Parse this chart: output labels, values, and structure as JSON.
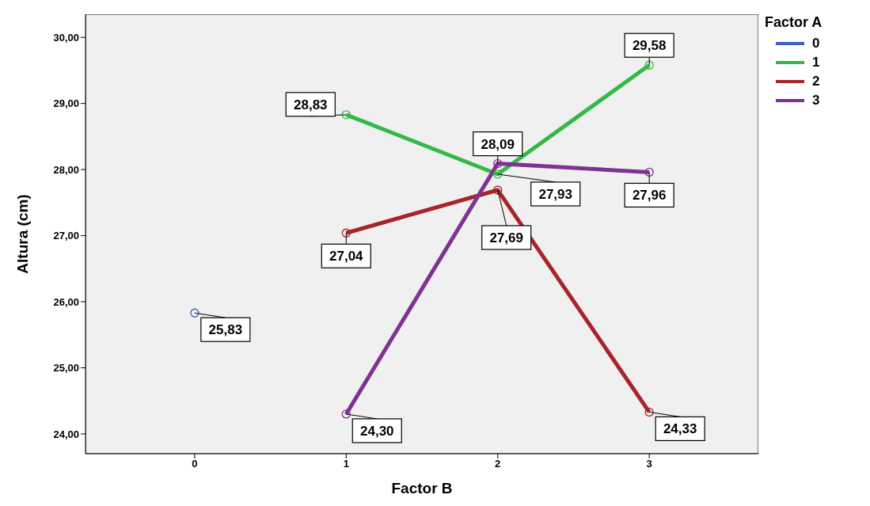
{
  "chart_data": {
    "type": "line",
    "xlabel": "Factor B",
    "ylabel": "Altura (cm)",
    "legend_title": "Factor A",
    "categories": [
      "0",
      "1",
      "2",
      "3"
    ],
    "ylim": [
      23.7,
      30.35
    ],
    "yticks": [
      {
        "value": 24,
        "label": "24,00"
      },
      {
        "value": 25,
        "label": "25,00"
      },
      {
        "value": 26,
        "label": "26,00"
      },
      {
        "value": 27,
        "label": "27,00"
      },
      {
        "value": 28,
        "label": "28,00"
      },
      {
        "value": 29,
        "label": "29,00"
      },
      {
        "value": 30,
        "label": "30,00"
      }
    ],
    "series": [
      {
        "name": "0",
        "color": "#3f5fbf",
        "values": [
          25.83,
          null,
          null,
          null
        ],
        "value_labels": [
          "25,83",
          null,
          null,
          null
        ]
      },
      {
        "name": "1",
        "color": "#35b847",
        "values": [
          null,
          28.83,
          27.93,
          29.58
        ],
        "value_labels": [
          null,
          "28,83",
          "27,93",
          "29,58"
        ]
      },
      {
        "name": "2",
        "color": "#a92428",
        "values": [
          null,
          27.04,
          27.69,
          24.33
        ],
        "value_labels": [
          null,
          "27,04",
          "27,69",
          "24,33"
        ]
      },
      {
        "name": "3",
        "color": "#7e3291",
        "values": [
          null,
          24.3,
          28.09,
          27.96
        ],
        "value_labels": [
          null,
          "24,30",
          "28,09",
          "27,96"
        ]
      }
    ],
    "marker": "circle",
    "line_style": "solid",
    "grid": false,
    "legend": "top right"
  }
}
